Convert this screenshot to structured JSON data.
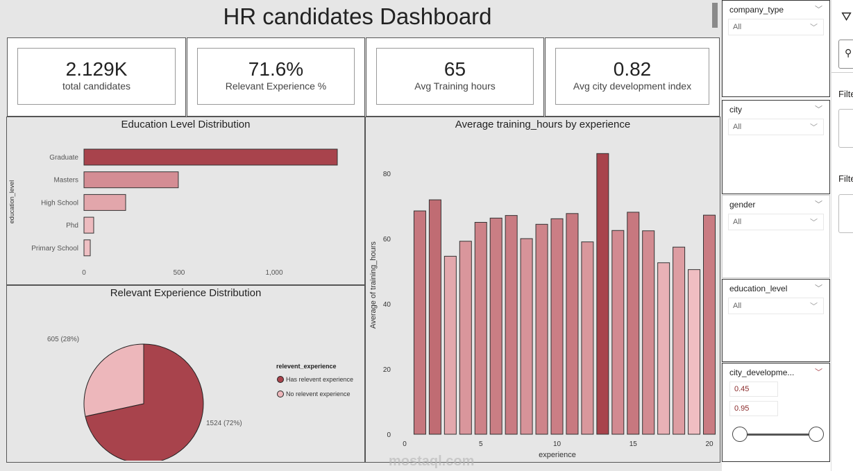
{
  "title": "HR candidates Dashboard",
  "kpis": [
    {
      "value": "2.129K",
      "label": "total candidates"
    },
    {
      "value": "71.6%",
      "label": "Relevant Experience %"
    },
    {
      "value": "65",
      "label": "Avg Training hours"
    },
    {
      "value": "0.82",
      "label": "Avg city development index"
    }
  ],
  "chart_data": [
    {
      "type": "bar",
      "orientation": "horizontal",
      "title": "Education Level Distribution",
      "ylabel": "education_level",
      "xlabel": "",
      "categories": [
        "Graduate",
        "Masters",
        "High School",
        "Phd",
        "Primary School"
      ],
      "values": [
        1332,
        496,
        219,
        51,
        33
      ],
      "xticks": [
        "0",
        "500",
        "1,000"
      ],
      "xlim": [
        0,
        1350
      ],
      "colors": [
        "#a8434c",
        "#d48d94",
        "#e2a6ab",
        "#edbbbf",
        "#efc0c4"
      ]
    },
    {
      "type": "pie",
      "title": "Relevant Experience Distribution",
      "legend_title": "relevent_experience",
      "slices": [
        {
          "name": "Has relevent experience",
          "value": 1524,
          "label": "1524 (72%)",
          "color": "#a8434c"
        },
        {
          "name": "No relevent experience",
          "value": 605,
          "label": "605 (28%)",
          "color": "#edb7bb"
        }
      ],
      "legend": "right"
    },
    {
      "type": "bar",
      "title": "Average training_hours by experience",
      "xlabel": "experience",
      "ylabel": "Average of training_hours",
      "x": [
        1,
        2,
        3,
        4,
        5,
        6,
        7,
        8,
        9,
        10,
        11,
        12,
        13,
        14,
        15,
        16,
        17,
        18,
        19,
        20
      ],
      "values": [
        68.5,
        71.9,
        54.6,
        59.2,
        65.0,
        66.3,
        67.1,
        60.0,
        64.4,
        66.1,
        67.7,
        59.0,
        86.1,
        62.5,
        68.1,
        62.4,
        52.6,
        57.4,
        50.5,
        67.2
      ],
      "ylim": [
        0,
        88
      ],
      "yticks": [
        "0",
        "20",
        "40",
        "60",
        "80"
      ],
      "xticks": [
        "0",
        "5",
        "10",
        "15",
        "20"
      ],
      "xlim": [
        0,
        20.5
      ]
    }
  ],
  "slicers": [
    {
      "label": "company_type",
      "value": "All"
    },
    {
      "label": "city",
      "value": "All"
    },
    {
      "label": "gender",
      "value": "All"
    },
    {
      "label": "education_level",
      "value": "All"
    }
  ],
  "range_slicer": {
    "label": "city_developme...",
    "min": "0.45",
    "max": "0.95"
  },
  "filters_pane": {
    "label1": "Filte",
    "label2": "Filte"
  },
  "watermark": "mostaql.com"
}
